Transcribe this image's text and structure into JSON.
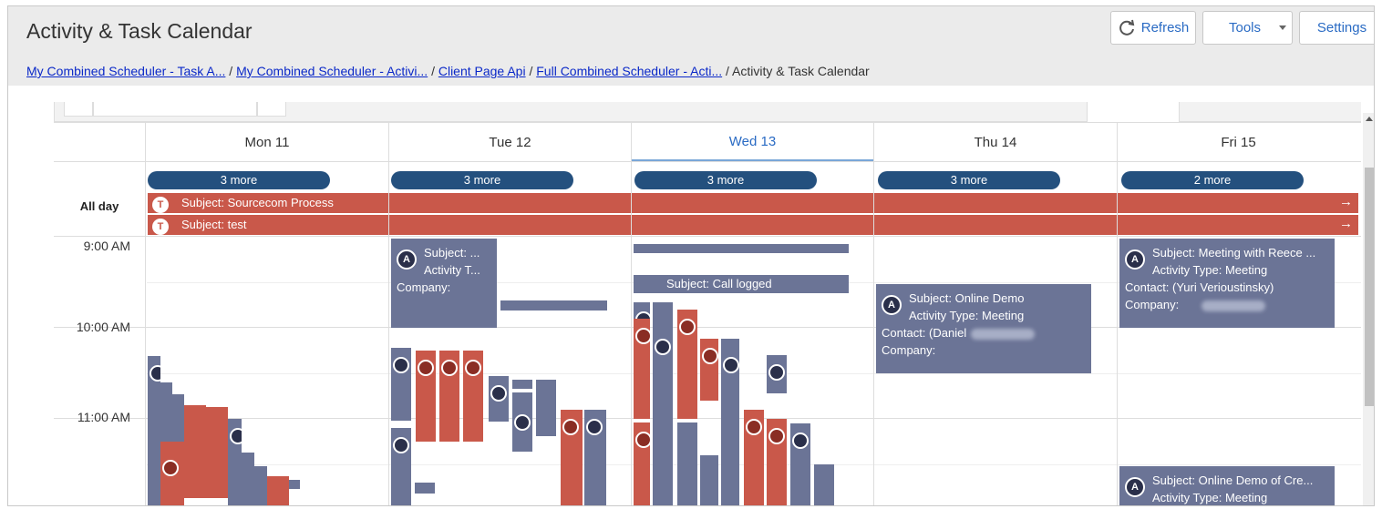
{
  "header": {
    "title": "Activity & Task Calendar",
    "refresh_label": "Refresh",
    "tools_label": "Tools",
    "settings_label": "Settings"
  },
  "breadcrumb": {
    "items": [
      "My Combined Scheduler - Task A...",
      "My Combined Scheduler - Activi...",
      "Client Page Api",
      "Full Combined Scheduler - Acti..."
    ],
    "current": "Activity & Task Calendar",
    "separator": "/"
  },
  "calendar": {
    "days": [
      "Mon 11",
      "Tue 12",
      "Wed 13",
      "Thu 14",
      "Fri 15"
    ],
    "today_index": 2,
    "more": [
      "3 more",
      "3 more",
      "3 more",
      "3 more",
      "2 more"
    ],
    "allday_label": "All day",
    "allday_events": [
      {
        "badge": "T",
        "text": "Subject: Sourcecom Process",
        "arrow": "→"
      },
      {
        "badge": "T",
        "text": "Subject: test",
        "arrow": "→"
      }
    ],
    "times": [
      "9:00 AM",
      "10:00 AM",
      "11:00 AM"
    ],
    "events": {
      "tue": {
        "badge": "A",
        "l1": "Subject: ...",
        "l2": "Activity T...",
        "l3": "Company:"
      },
      "thu": {
        "badge": "A",
        "l1": "Subject: Online Demo",
        "l2": "Activity Type: Meeting",
        "l3": "Contact: (Daniel",
        "l4": "Company:"
      },
      "fri1": {
        "badge": "A",
        "l1": "Subject: Meeting with Reece ...",
        "l2": "Activity Type: Meeting",
        "l3": "Contact: (Yuri Verioustinsky)",
        "l4": "Company:"
      },
      "fri2": {
        "badge": "A",
        "l1": "Subject: Online Demo of Cre...",
        "l2": "Activity Type: Meeting"
      },
      "wed_partial": "Subject: Call logged"
    }
  },
  "colors": {
    "activity": "#6b7496",
    "task": "#c9584a",
    "more_pill": "#24507e",
    "accent": "#2a6bc4"
  }
}
